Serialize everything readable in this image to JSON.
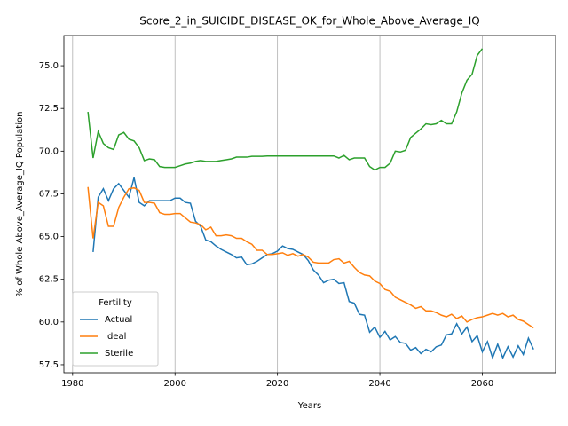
{
  "chart_data": {
    "type": "line",
    "title": "Score_2_in_SUICIDE_DISEASE_OK_for_Whole_Above_Average_IQ",
    "x_label": "Years",
    "y_label": "% of Whole Above_Average_IQ Population",
    "legend_title": "Fertility",
    "legend_position": "lower left",
    "grid": "x",
    "x": [
      1983,
      1984,
      1985,
      1986,
      1987,
      1988,
      1989,
      1990,
      1991,
      1992,
      1993,
      1994,
      1995,
      1996,
      1997,
      1998,
      1999,
      2000,
      2001,
      2002,
      2003,
      2004,
      2005,
      2006,
      2007,
      2008,
      2009,
      2010,
      2011,
      2012,
      2013,
      2014,
      2015,
      2016,
      2017,
      2018,
      2019,
      2020,
      2021,
      2022,
      2023,
      2024,
      2025,
      2026,
      2027,
      2028,
      2029,
      2030,
      2031,
      2032,
      2033,
      2034,
      2035,
      2036,
      2037,
      2038,
      2039,
      2040,
      2041,
      2042,
      2043,
      2044,
      2045,
      2046,
      2047,
      2048,
      2049,
      2050,
      2051,
      2052,
      2053,
      2054,
      2055,
      2056,
      2057,
      2058,
      2059,
      2060,
      2061,
      2062,
      2063,
      2064,
      2065,
      2066,
      2067,
      2068,
      2069,
      2070
    ],
    "series": [
      {
        "name": "Actual",
        "color": "#1f77b4",
        "values": [
          null,
          64.1,
          67.3,
          67.8,
          67.1,
          67.8,
          68.1,
          67.7,
          67.3,
          68.45,
          67.0,
          66.8,
          67.1,
          67.1,
          67.1,
          67.1,
          67.1,
          67.25,
          67.25,
          67.0,
          66.95,
          65.9,
          65.6,
          64.8,
          64.7,
          64.45,
          64.25,
          64.1,
          63.95,
          63.75,
          63.8,
          63.35,
          63.4,
          63.55,
          63.75,
          63.95,
          64.0,
          64.15,
          64.45,
          64.3,
          64.25,
          64.1,
          63.95,
          63.6,
          63.05,
          62.75,
          62.3,
          62.45,
          62.5,
          62.25,
          62.3,
          61.2,
          61.1,
          60.45,
          60.4,
          59.4,
          59.7,
          59.1,
          59.45,
          58.95,
          59.15,
          58.8,
          58.75,
          58.35,
          58.5,
          58.15,
          58.4,
          58.25,
          58.55,
          58.65,
          59.25,
          59.3,
          59.9,
          59.3,
          59.7,
          58.85,
          59.2,
          58.25,
          58.85,
          57.9,
          58.7,
          57.9,
          58.55,
          57.95,
          58.6,
          58.1,
          59.05,
          58.4
        ]
      },
      {
        "name": "Ideal",
        "color": "#ff7f0e",
        "values": [
          67.9,
          64.9,
          67.0,
          66.8,
          65.6,
          65.6,
          66.7,
          67.3,
          67.8,
          67.85,
          67.7,
          67.0,
          67.0,
          66.95,
          66.4,
          66.3,
          66.3,
          66.35,
          66.35,
          66.1,
          65.85,
          65.8,
          65.7,
          65.4,
          65.55,
          65.05,
          65.05,
          65.1,
          65.05,
          64.9,
          64.9,
          64.7,
          64.55,
          64.2,
          64.2,
          63.95,
          63.95,
          64.0,
          64.05,
          63.9,
          64.0,
          63.85,
          63.95,
          63.8,
          63.5,
          63.45,
          63.45,
          63.45,
          63.65,
          63.7,
          63.45,
          63.55,
          63.2,
          62.9,
          62.75,
          62.7,
          62.4,
          62.25,
          61.9,
          61.8,
          61.45,
          61.3,
          61.15,
          61.0,
          60.8,
          60.9,
          60.65,
          60.65,
          60.55,
          60.4,
          60.3,
          60.45,
          60.2,
          60.35,
          60.0,
          60.15,
          60.25,
          60.3,
          60.4,
          60.5,
          60.4,
          60.5,
          60.3,
          60.4,
          60.15,
          60.05,
          59.85,
          59.65
        ]
      },
      {
        "name": "Sterile",
        "color": "#2ca02c",
        "values": [
          72.3,
          69.6,
          71.15,
          70.45,
          70.2,
          70.1,
          70.95,
          71.1,
          70.7,
          70.6,
          70.2,
          69.45,
          69.55,
          69.5,
          69.1,
          69.05,
          69.05,
          69.05,
          69.15,
          69.25,
          69.3,
          69.4,
          69.45,
          69.4,
          69.4,
          69.4,
          69.45,
          69.5,
          69.55,
          69.65,
          69.65,
          69.65,
          69.7,
          69.7,
          69.7,
          69.72,
          69.72,
          69.72,
          69.72,
          69.72,
          69.72,
          69.72,
          69.72,
          69.72,
          69.72,
          69.72,
          69.72,
          69.72,
          69.72,
          69.6,
          69.75,
          69.5,
          69.6,
          69.6,
          69.6,
          69.1,
          68.9,
          69.05,
          69.05,
          69.3,
          70.0,
          69.95,
          70.05,
          70.8,
          71.05,
          71.3,
          71.6,
          71.55,
          71.6,
          71.8,
          71.6,
          71.6,
          72.3,
          73.4,
          74.15,
          74.5,
          75.6,
          76.0,
          null,
          null,
          null,
          null,
          null,
          null,
          null,
          null,
          null,
          null
        ]
      }
    ],
    "xlim": [
      1978.3,
      2074.3
    ],
    "xticks": [
      1980,
      2000,
      2020,
      2040,
      2060
    ],
    "ylim": [
      57.03,
      76.77
    ],
    "yticks": [
      57.5,
      {
        "value": 60,
        "label": "60.0"
      },
      62.5,
      {
        "value": 65,
        "label": "65.0"
      },
      67.5,
      {
        "value": 70,
        "label": "70.0"
      },
      72.5,
      {
        "value": 75,
        "label": "75.0"
      }
    ]
  }
}
